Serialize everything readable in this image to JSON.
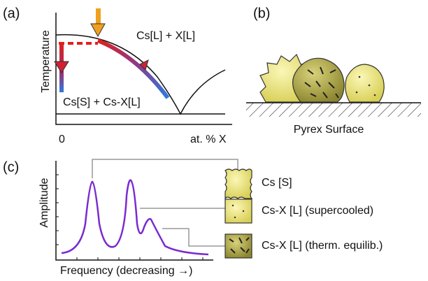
{
  "panel_a": {
    "label": "(a)",
    "y_axis": "Temperature",
    "x_axis": "at. % X",
    "x_origin": "0",
    "region_upper": "Cs[L] + X[L]",
    "region_lower": "Cs[S] + Cs-X[L]"
  },
  "panel_b": {
    "label": "(b)",
    "surface": "Pyrex Surface"
  },
  "panel_c": {
    "label": "(c)",
    "y_axis": "Amplitude",
    "x_axis": "Frequency (decreasing →)",
    "legend": [
      "Cs [S]",
      "Cs-X [L] (supercooled)",
      "Cs-X [L] (therm. equilib.)"
    ]
  }
}
